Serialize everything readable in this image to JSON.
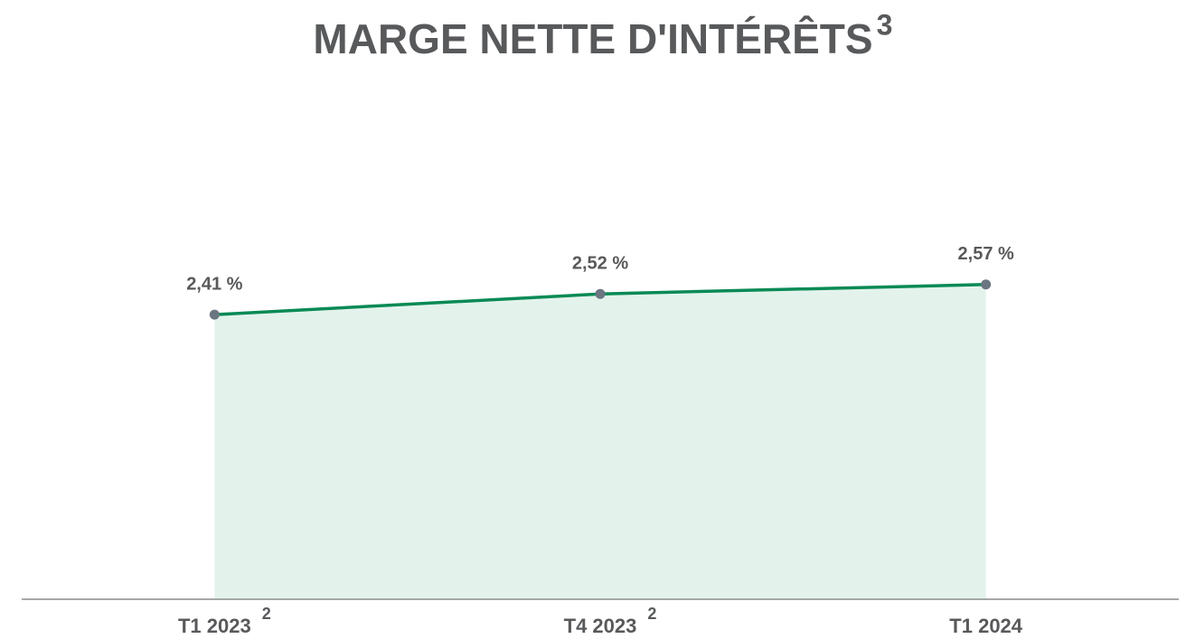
{
  "chart_data": {
    "type": "area",
    "title": "MARGE NETTE D'INTÉRÊTS",
    "title_superscript": "3",
    "categories": [
      "T1 2023",
      "T4 2023",
      "T1 2024"
    ],
    "category_superscripts": [
      "2",
      "2",
      null
    ],
    "values": [
      2.41,
      2.52,
      2.57
    ],
    "value_labels": [
      "2,41 %",
      "2,52 %",
      "2,57 %"
    ],
    "ylim": [
      0.9,
      3.6
    ],
    "color": "#0a8a55",
    "fill_color": "#e3f3ec",
    "marker_color": "#6b7682",
    "grid": false
  }
}
